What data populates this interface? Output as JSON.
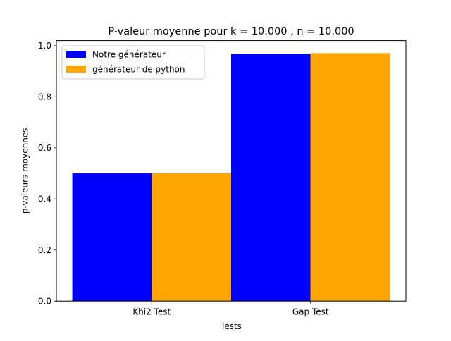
{
  "chart_data": {
    "type": "bar",
    "title": "P-valeur moyenne pour k = 10.000 , n = 10.000",
    "xlabel": "Tests",
    "ylabel": "p-valeurs moyennes",
    "categories": [
      "Khi2 Test",
      "Gap Test"
    ],
    "series": [
      {
        "name": "Notre générateur",
        "color": "#0000ff",
        "values": [
          0.5,
          0.968
        ]
      },
      {
        "name": "générateur de python",
        "color": "#ffa500",
        "values": [
          0.5,
          0.971
        ]
      }
    ],
    "ylim": [
      0,
      1.02
    ],
    "yticks": [
      0.0,
      0.2,
      0.4,
      0.6,
      0.8,
      1.0
    ],
    "ytick_labels": [
      "0.0",
      "0.2",
      "0.4",
      "0.6",
      "0.8",
      "1.0"
    ],
    "grid": false,
    "legend_position": "top-left"
  }
}
